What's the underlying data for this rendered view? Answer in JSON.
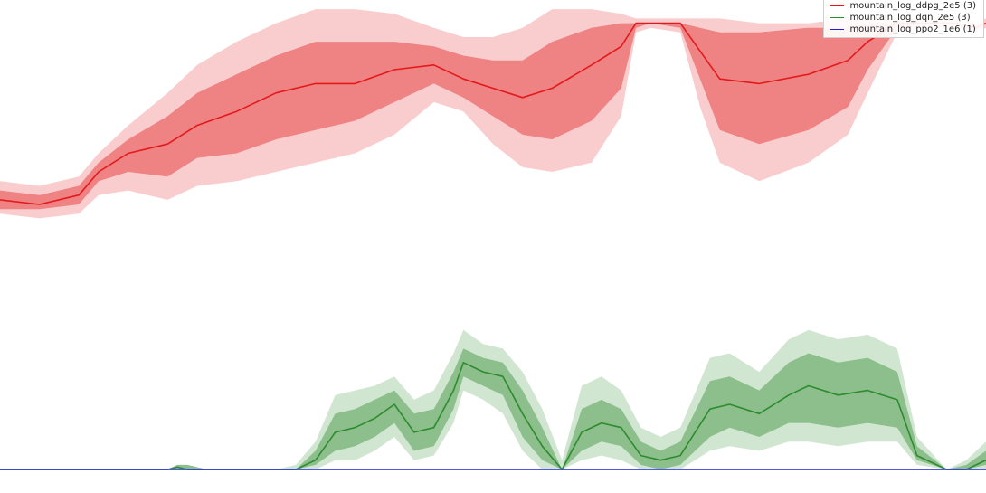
{
  "colors": {
    "ddpg": "#e31a1c",
    "dqn": "#2e8b2e",
    "ppo": "#1f1fd6"
  },
  "chart_data": {
    "type": "line",
    "title": "",
    "xlabel": "",
    "ylabel": "",
    "grid": false,
    "xlim": [
      0,
      1
    ],
    "ylim": [
      0,
      1
    ],
    "legend_placement": "top-right",
    "legend": [
      "mountain_log_ddpg_2e5 (3)",
      "mountain_log_dqn_2e5 (3)",
      "mountain_log_ppo2_1e6 (1)"
    ],
    "series": [
      {
        "name": "mountain_log_ddpg_2e5 (3)",
        "color": "#e31a1c",
        "x": [
          0.0,
          0.04,
          0.08,
          0.1,
          0.13,
          0.17,
          0.2,
          0.24,
          0.28,
          0.32,
          0.36,
          0.4,
          0.44,
          0.47,
          0.5,
          0.53,
          0.56,
          0.6,
          0.63,
          0.645,
          0.66,
          0.69,
          0.71,
          0.73,
          0.77,
          0.82,
          0.86,
          0.88,
          0.91,
          0.94,
          0.97,
          0.99,
          1.0
        ],
        "mean": [
          0.58,
          0.57,
          0.59,
          0.64,
          0.68,
          0.7,
          0.74,
          0.77,
          0.81,
          0.83,
          0.83,
          0.86,
          0.87,
          0.84,
          0.82,
          0.8,
          0.82,
          0.87,
          0.91,
          0.96,
          0.96,
          0.96,
          0.9,
          0.84,
          0.83,
          0.85,
          0.88,
          0.92,
          0.96,
          0.96,
          0.96,
          0.95,
          0.96
        ],
        "inner_low": [
          0.56,
          0.56,
          0.57,
          0.62,
          0.64,
          0.63,
          0.67,
          0.68,
          0.71,
          0.73,
          0.75,
          0.79,
          0.83,
          0.8,
          0.76,
          0.72,
          0.71,
          0.75,
          0.82,
          0.95,
          0.96,
          0.95,
          0.84,
          0.73,
          0.7,
          0.73,
          0.78,
          0.86,
          0.95,
          0.96,
          0.96,
          0.95,
          0.96
        ],
        "inner_high": [
          0.6,
          0.59,
          0.61,
          0.66,
          0.71,
          0.76,
          0.81,
          0.85,
          0.89,
          0.92,
          0.92,
          0.92,
          0.91,
          0.89,
          0.88,
          0.88,
          0.92,
          0.95,
          0.96,
          0.96,
          0.96,
          0.96,
          0.95,
          0.94,
          0.94,
          0.95,
          0.95,
          0.96,
          0.96,
          0.96,
          0.96,
          0.95,
          0.96
        ],
        "outer_low": [
          0.55,
          0.54,
          0.55,
          0.59,
          0.6,
          0.58,
          0.61,
          0.62,
          0.64,
          0.66,
          0.68,
          0.72,
          0.79,
          0.77,
          0.7,
          0.65,
          0.64,
          0.66,
          0.76,
          0.94,
          0.95,
          0.94,
          0.78,
          0.66,
          0.62,
          0.66,
          0.72,
          0.81,
          0.94,
          0.95,
          0.95,
          0.94,
          0.95
        ],
        "outer_high": [
          0.62,
          0.61,
          0.63,
          0.68,
          0.74,
          0.81,
          0.87,
          0.92,
          0.96,
          0.99,
          0.99,
          0.98,
          0.95,
          0.93,
          0.93,
          0.95,
          0.99,
          0.99,
          0.98,
          0.97,
          0.97,
          0.97,
          0.97,
          0.97,
          0.96,
          0.96,
          0.97,
          0.97,
          0.97,
          0.97,
          0.97,
          0.96,
          0.97
        ]
      },
      {
        "name": "mountain_log_dqn_2e5 (3)",
        "color": "#2e8b2e",
        "x": [
          0.0,
          0.17,
          0.18,
          0.19,
          0.21,
          0.24,
          0.28,
          0.3,
          0.32,
          0.34,
          0.36,
          0.38,
          0.4,
          0.42,
          0.44,
          0.46,
          0.47,
          0.49,
          0.51,
          0.53,
          0.55,
          0.57,
          0.59,
          0.61,
          0.63,
          0.65,
          0.67,
          0.69,
          0.72,
          0.74,
          0.77,
          0.8,
          0.82,
          0.85,
          0.88,
          0.91,
          0.93,
          0.96,
          0.98,
          1.0
        ],
        "mean": [
          0.0,
          0.0,
          0.005,
          0.0,
          0.0,
          0.0,
          0.0,
          0.0,
          0.02,
          0.08,
          0.09,
          0.11,
          0.14,
          0.08,
          0.09,
          0.17,
          0.23,
          0.21,
          0.2,
          0.12,
          0.05,
          0.0,
          0.08,
          0.1,
          0.09,
          0.03,
          0.02,
          0.03,
          0.13,
          0.14,
          0.12,
          0.16,
          0.18,
          0.16,
          0.17,
          0.15,
          0.03,
          0.0,
          0.0,
          0.02
        ],
        "inner_low": [
          0.0,
          0.0,
          0.0,
          0.0,
          0.0,
          0.0,
          0.0,
          0.0,
          0.01,
          0.04,
          0.05,
          0.07,
          0.1,
          0.04,
          0.05,
          0.13,
          0.2,
          0.18,
          0.16,
          0.07,
          0.02,
          0.0,
          0.04,
          0.06,
          0.05,
          0.01,
          0.0,
          0.01,
          0.07,
          0.09,
          0.07,
          0.1,
          0.1,
          0.09,
          0.1,
          0.09,
          0.02,
          0.0,
          0.0,
          0.01
        ],
        "inner_high": [
          0.0,
          0.0,
          0.01,
          0.01,
          0.0,
          0.0,
          0.0,
          0.0,
          0.04,
          0.12,
          0.13,
          0.15,
          0.17,
          0.12,
          0.13,
          0.21,
          0.26,
          0.24,
          0.23,
          0.17,
          0.09,
          0.0,
          0.13,
          0.15,
          0.13,
          0.06,
          0.04,
          0.06,
          0.19,
          0.2,
          0.17,
          0.23,
          0.25,
          0.23,
          0.24,
          0.21,
          0.05,
          0.0,
          0.01,
          0.04
        ],
        "outer_low": [
          0.0,
          0.0,
          0.0,
          0.0,
          0.0,
          0.0,
          0.0,
          0.0,
          0.0,
          0.02,
          0.02,
          0.04,
          0.07,
          0.02,
          0.03,
          0.1,
          0.17,
          0.15,
          0.12,
          0.04,
          0.0,
          0.0,
          0.02,
          0.03,
          0.02,
          0.0,
          0.0,
          0.0,
          0.04,
          0.05,
          0.04,
          0.06,
          0.06,
          0.05,
          0.06,
          0.06,
          0.01,
          0.0,
          0.0,
          0.0
        ],
        "outer_high": [
          0.0,
          0.0,
          0.01,
          0.01,
          0.0,
          0.0,
          0.0,
          0.01,
          0.06,
          0.16,
          0.17,
          0.18,
          0.2,
          0.15,
          0.17,
          0.25,
          0.3,
          0.27,
          0.26,
          0.21,
          0.13,
          0.02,
          0.18,
          0.2,
          0.17,
          0.09,
          0.07,
          0.09,
          0.24,
          0.25,
          0.21,
          0.28,
          0.3,
          0.28,
          0.29,
          0.26,
          0.07,
          0.0,
          0.02,
          0.06
        ]
      },
      {
        "name": "mountain_log_ppo2_1e6 (1)",
        "color": "#1f1fd6",
        "x": [
          0.0,
          1.0
        ],
        "mean": [
          0.0,
          0.0
        ]
      }
    ]
  }
}
